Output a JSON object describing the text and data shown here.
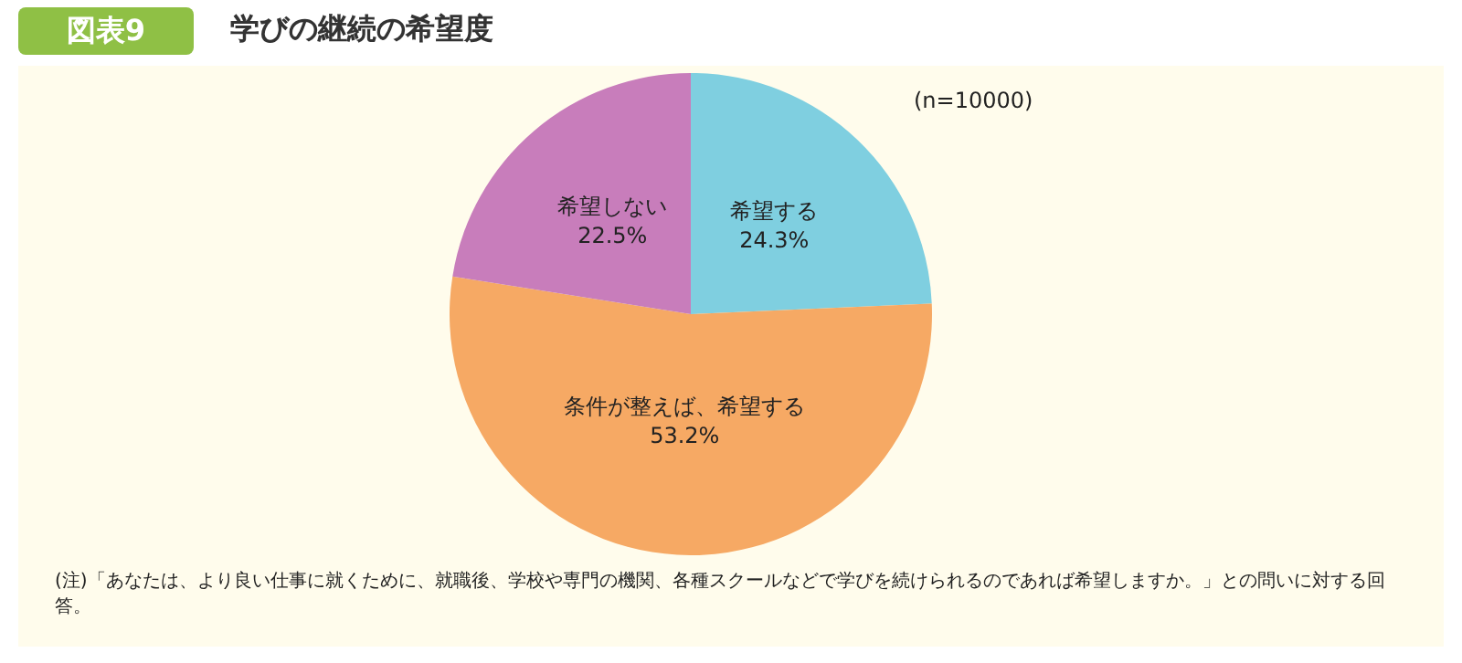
{
  "chart_data": {
    "type": "pie",
    "title": "学びの継続の希望度",
    "categories": [
      "希望する",
      "条件が整えば、希望する",
      "希望しない"
    ],
    "values": [
      24.3,
      53.2,
      22.5
    ],
    "value_labels": [
      "24.3%",
      "53.2%",
      "22.5%"
    ],
    "colors": [
      "#7fcfe0",
      "#f6a964",
      "#c87dbb"
    ],
    "legend": false,
    "annotations": [
      "図表9",
      "(n=10000)",
      "(注)「あなたは、より良い仕事に就くために、就職後、学校や専門の機関、各種スクールなどで学びを続けられるのであれば希望しますか。」との問いに対する回答。"
    ]
  }
}
